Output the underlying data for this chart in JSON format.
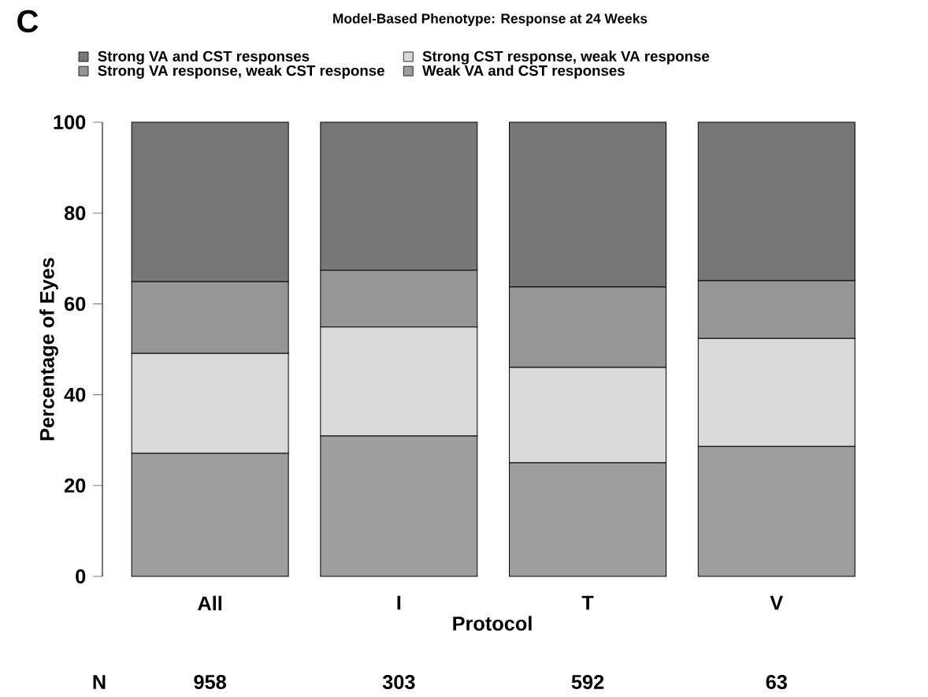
{
  "chart_data": {
    "type": "bar",
    "stacked": true,
    "title": "Model-Based Phenotype: Response at 24 Weeks",
    "xlabel": "Protocol",
    "ylabel": "Percentage of Eyes",
    "categories": [
      "All",
      "I",
      "T",
      "V"
    ],
    "series": [
      {
        "name": "Weak VA and CST responses",
        "color": "#9e9e9e",
        "values": [
          27.1,
          30.9,
          25.0,
          28.6
        ]
      },
      {
        "name": "Strong CST response, weak VA response",
        "color": "#d9d9d9",
        "values": [
          22.0,
          24.0,
          21.0,
          23.8
        ]
      },
      {
        "name": "Strong VA response, weak CST response",
        "color": "#969696",
        "values": [
          15.8,
          12.5,
          17.7,
          12.7
        ]
      },
      {
        "name": "Strong VA and CST responses",
        "color": "#777777",
        "values": [
          35.1,
          32.6,
          36.3,
          34.9
        ]
      }
    ],
    "ylim": [
      0,
      100
    ],
    "yticks": [
      0,
      20,
      40,
      60,
      80,
      100
    ],
    "grid": false,
    "legend": "top",
    "annotations": [
      "C",
      "N",
      "958",
      "303",
      "592",
      "63"
    ]
  }
}
